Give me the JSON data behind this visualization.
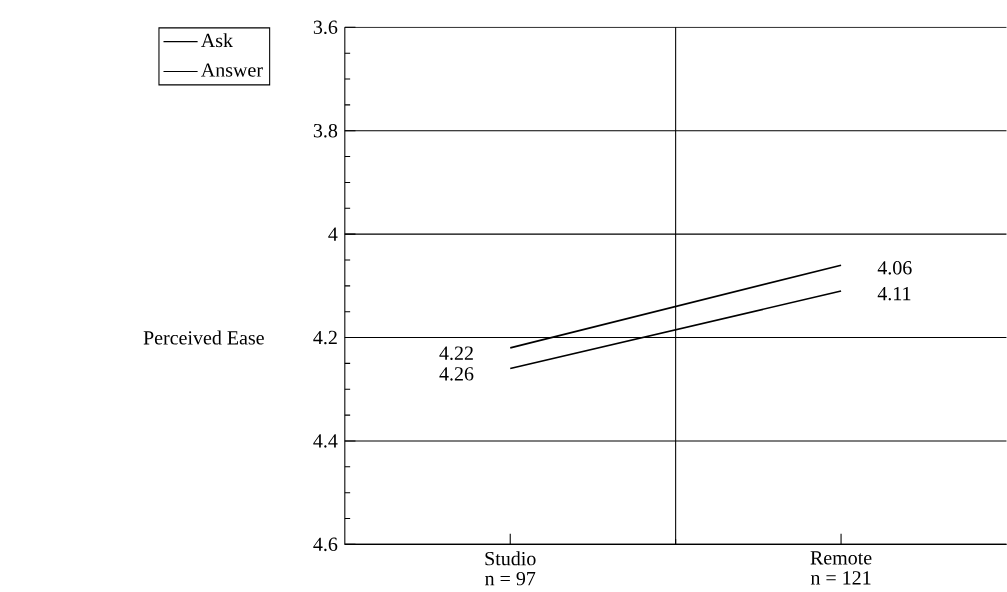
{
  "chart_data": {
    "type": "line",
    "ylabel": "Perceived Ease",
    "categories": [
      "Studio",
      "Remote"
    ],
    "annotations": [
      "n = 97",
      "n = 121"
    ],
    "series": [
      {
        "name": "Ask",
        "color": "#000000",
        "values": [
          4.22,
          4.06
        ],
        "value_labels": [
          "4.22",
          "4.06"
        ]
      },
      {
        "name": "Answer",
        "color": "#000000",
        "values": [
          4.26,
          4.11
        ],
        "value_labels": [
          "4.26",
          "4.11"
        ]
      }
    ],
    "ylim": [
      4.6,
      3.6
    ],
    "yticks": [
      3.6,
      3.8,
      4,
      4.2,
      4.4,
      4.6
    ],
    "grid": true,
    "legend": "top left"
  }
}
